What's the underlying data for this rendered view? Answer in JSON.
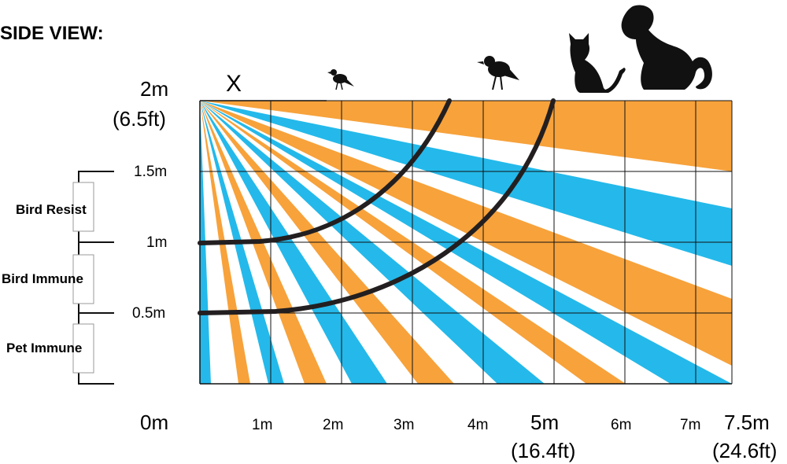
{
  "title": "SIDE VIEW:",
  "y_labels": {
    "top": "2m",
    "top_ft": "(6.5ft)",
    "l15": "1.5m",
    "l1": "1m",
    "l05": "0.5m",
    "zero": "0m"
  },
  "x_labels": {
    "m1": "1m",
    "m2": "2m",
    "m3": "3m",
    "m4": "4m",
    "m5": "5m",
    "m5_ft": "(16.4ft)",
    "m6": "6m",
    "m7": "7m",
    "m75": "7.5m",
    "m75_ft": "(24.6ft)"
  },
  "zones": {
    "bird_resist": "Bird Resist",
    "bird_immune": "Bird Immune",
    "pet_immune": "Pet Immune"
  },
  "marker": "X",
  "icons": [
    "small-bird-icon",
    "bird-icon",
    "cat-icon",
    "dog-icon"
  ],
  "colors": {
    "orange": "#F7A23B",
    "blue": "#24B9EA",
    "curve": "#231F20"
  }
}
